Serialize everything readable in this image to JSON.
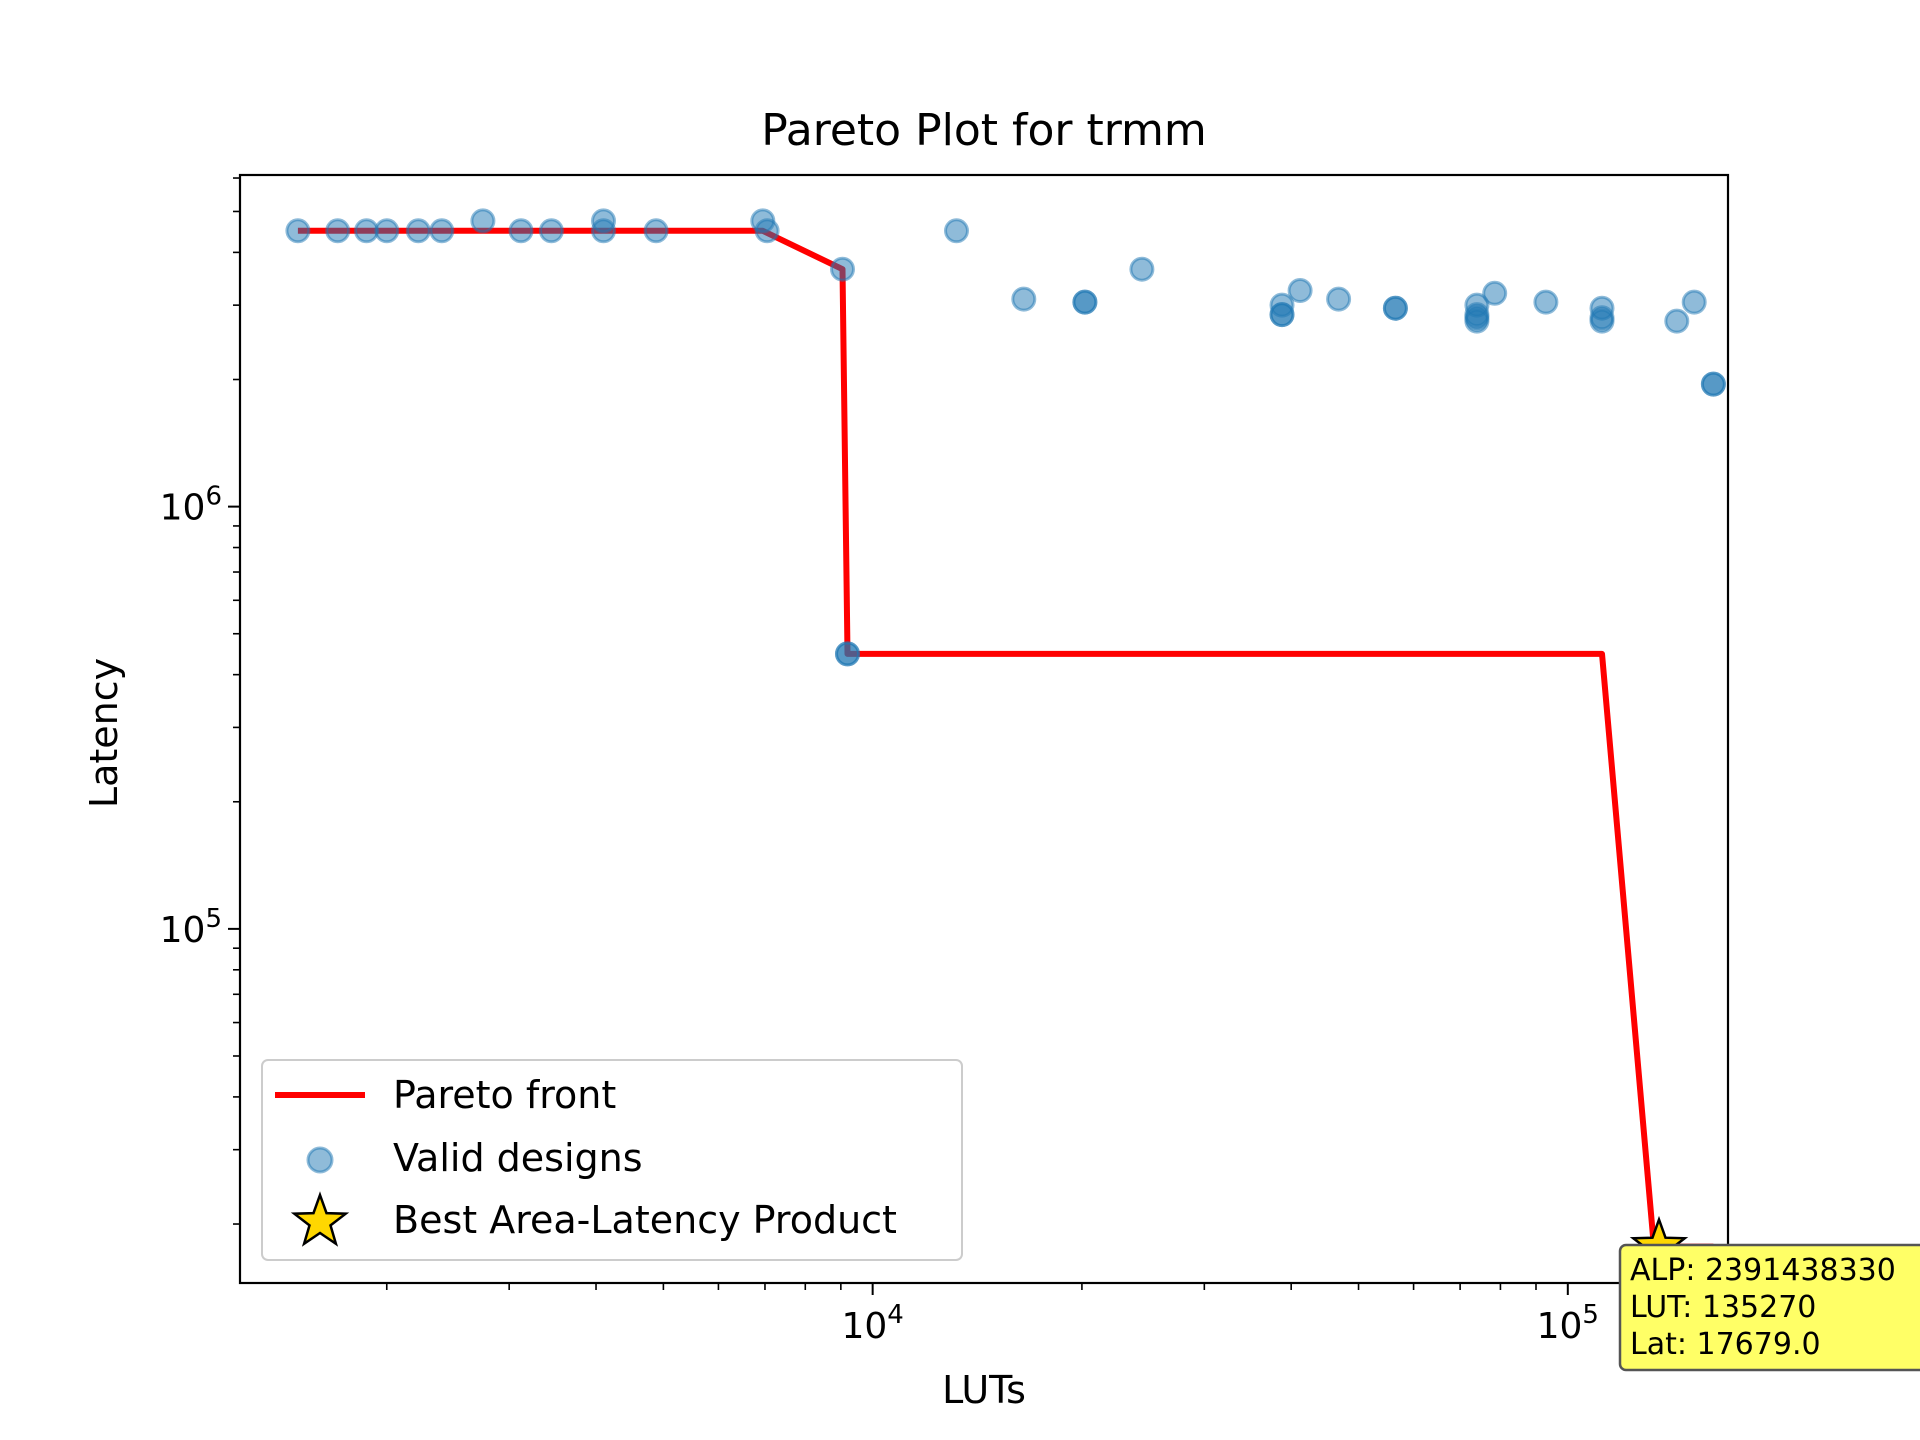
{
  "chart_data": {
    "type": "scatter",
    "title": "Pareto Plot for trmm",
    "xlabel": "LUTs",
    "ylabel": "Latency",
    "xscale": "log",
    "yscale": "log",
    "xlim": [
      1230,
      170000
    ],
    "ylim": [
      14500,
      6100000
    ],
    "x_ticks": [
      {
        "value": 10000,
        "base": "10",
        "exp": "4"
      },
      {
        "value": 100000,
        "base": "10",
        "exp": "5"
      }
    ],
    "y_ticks": [
      {
        "value": 100000,
        "base": "10",
        "exp": "5"
      },
      {
        "value": 1000000,
        "base": "10",
        "exp": "6"
      }
    ],
    "grid": false,
    "legend_position": "lower-left",
    "series": [
      {
        "name": "Pareto front",
        "kind": "line",
        "color": "#ff0000",
        "points": [
          [
            1490,
            4500000
          ],
          [
            6950,
            4500000
          ],
          [
            9050,
            3650000
          ],
          [
            9200,
            448000
          ],
          [
            112000,
            448000
          ],
          [
            133000,
            17679
          ],
          [
            162000,
            17679
          ]
        ]
      },
      {
        "name": "Valid designs",
        "kind": "scatter",
        "color": "#1f77b4",
        "points": [
          [
            1490,
            4500000
          ],
          [
            1700,
            4500000
          ],
          [
            1870,
            4500000
          ],
          [
            2000,
            4500000
          ],
          [
            2220,
            4500000
          ],
          [
            2400,
            4500000
          ],
          [
            2750,
            4750000
          ],
          [
            3120,
            4500000
          ],
          [
            3450,
            4500000
          ],
          [
            4100,
            4500000
          ],
          [
            4100,
            4750000
          ],
          [
            4880,
            4500000
          ],
          [
            6950,
            4750000
          ],
          [
            7050,
            4500000
          ],
          [
            9050,
            3650000
          ],
          [
            9200,
            448000
          ],
          [
            9200,
            448000
          ],
          [
            13200,
            4500000
          ],
          [
            16500,
            3100000
          ],
          [
            20200,
            3050000
          ],
          [
            20200,
            3050000
          ],
          [
            24400,
            3650000
          ],
          [
            38800,
            3000000
          ],
          [
            38800,
            2850000
          ],
          [
            38800,
            2850000
          ],
          [
            41200,
            3250000
          ],
          [
            46800,
            3100000
          ],
          [
            56500,
            2950000
          ],
          [
            56500,
            2950000
          ],
          [
            74000,
            3000000
          ],
          [
            74000,
            2850000
          ],
          [
            74000,
            2750000
          ],
          [
            74000,
            2800000
          ],
          [
            78500,
            3200000
          ],
          [
            93000,
            3050000
          ],
          [
            112000,
            2950000
          ],
          [
            112000,
            2750000
          ],
          [
            112000,
            2800000
          ],
          [
            143500,
            2750000
          ],
          [
            152000,
            3050000
          ],
          [
            162000,
            1950000
          ],
          [
            162000,
            1950000
          ]
        ]
      },
      {
        "name": "Best Area-Latency Product",
        "kind": "marker",
        "color": "#ffd700",
        "points": [
          [
            135270,
            17679
          ]
        ]
      }
    ],
    "annotation": {
      "lines": [
        "ALP: 2391438330",
        "LUT: 135270",
        "Lat: 17679.0"
      ],
      "point": [
        135270,
        17679
      ],
      "background": "#ffff66"
    }
  }
}
